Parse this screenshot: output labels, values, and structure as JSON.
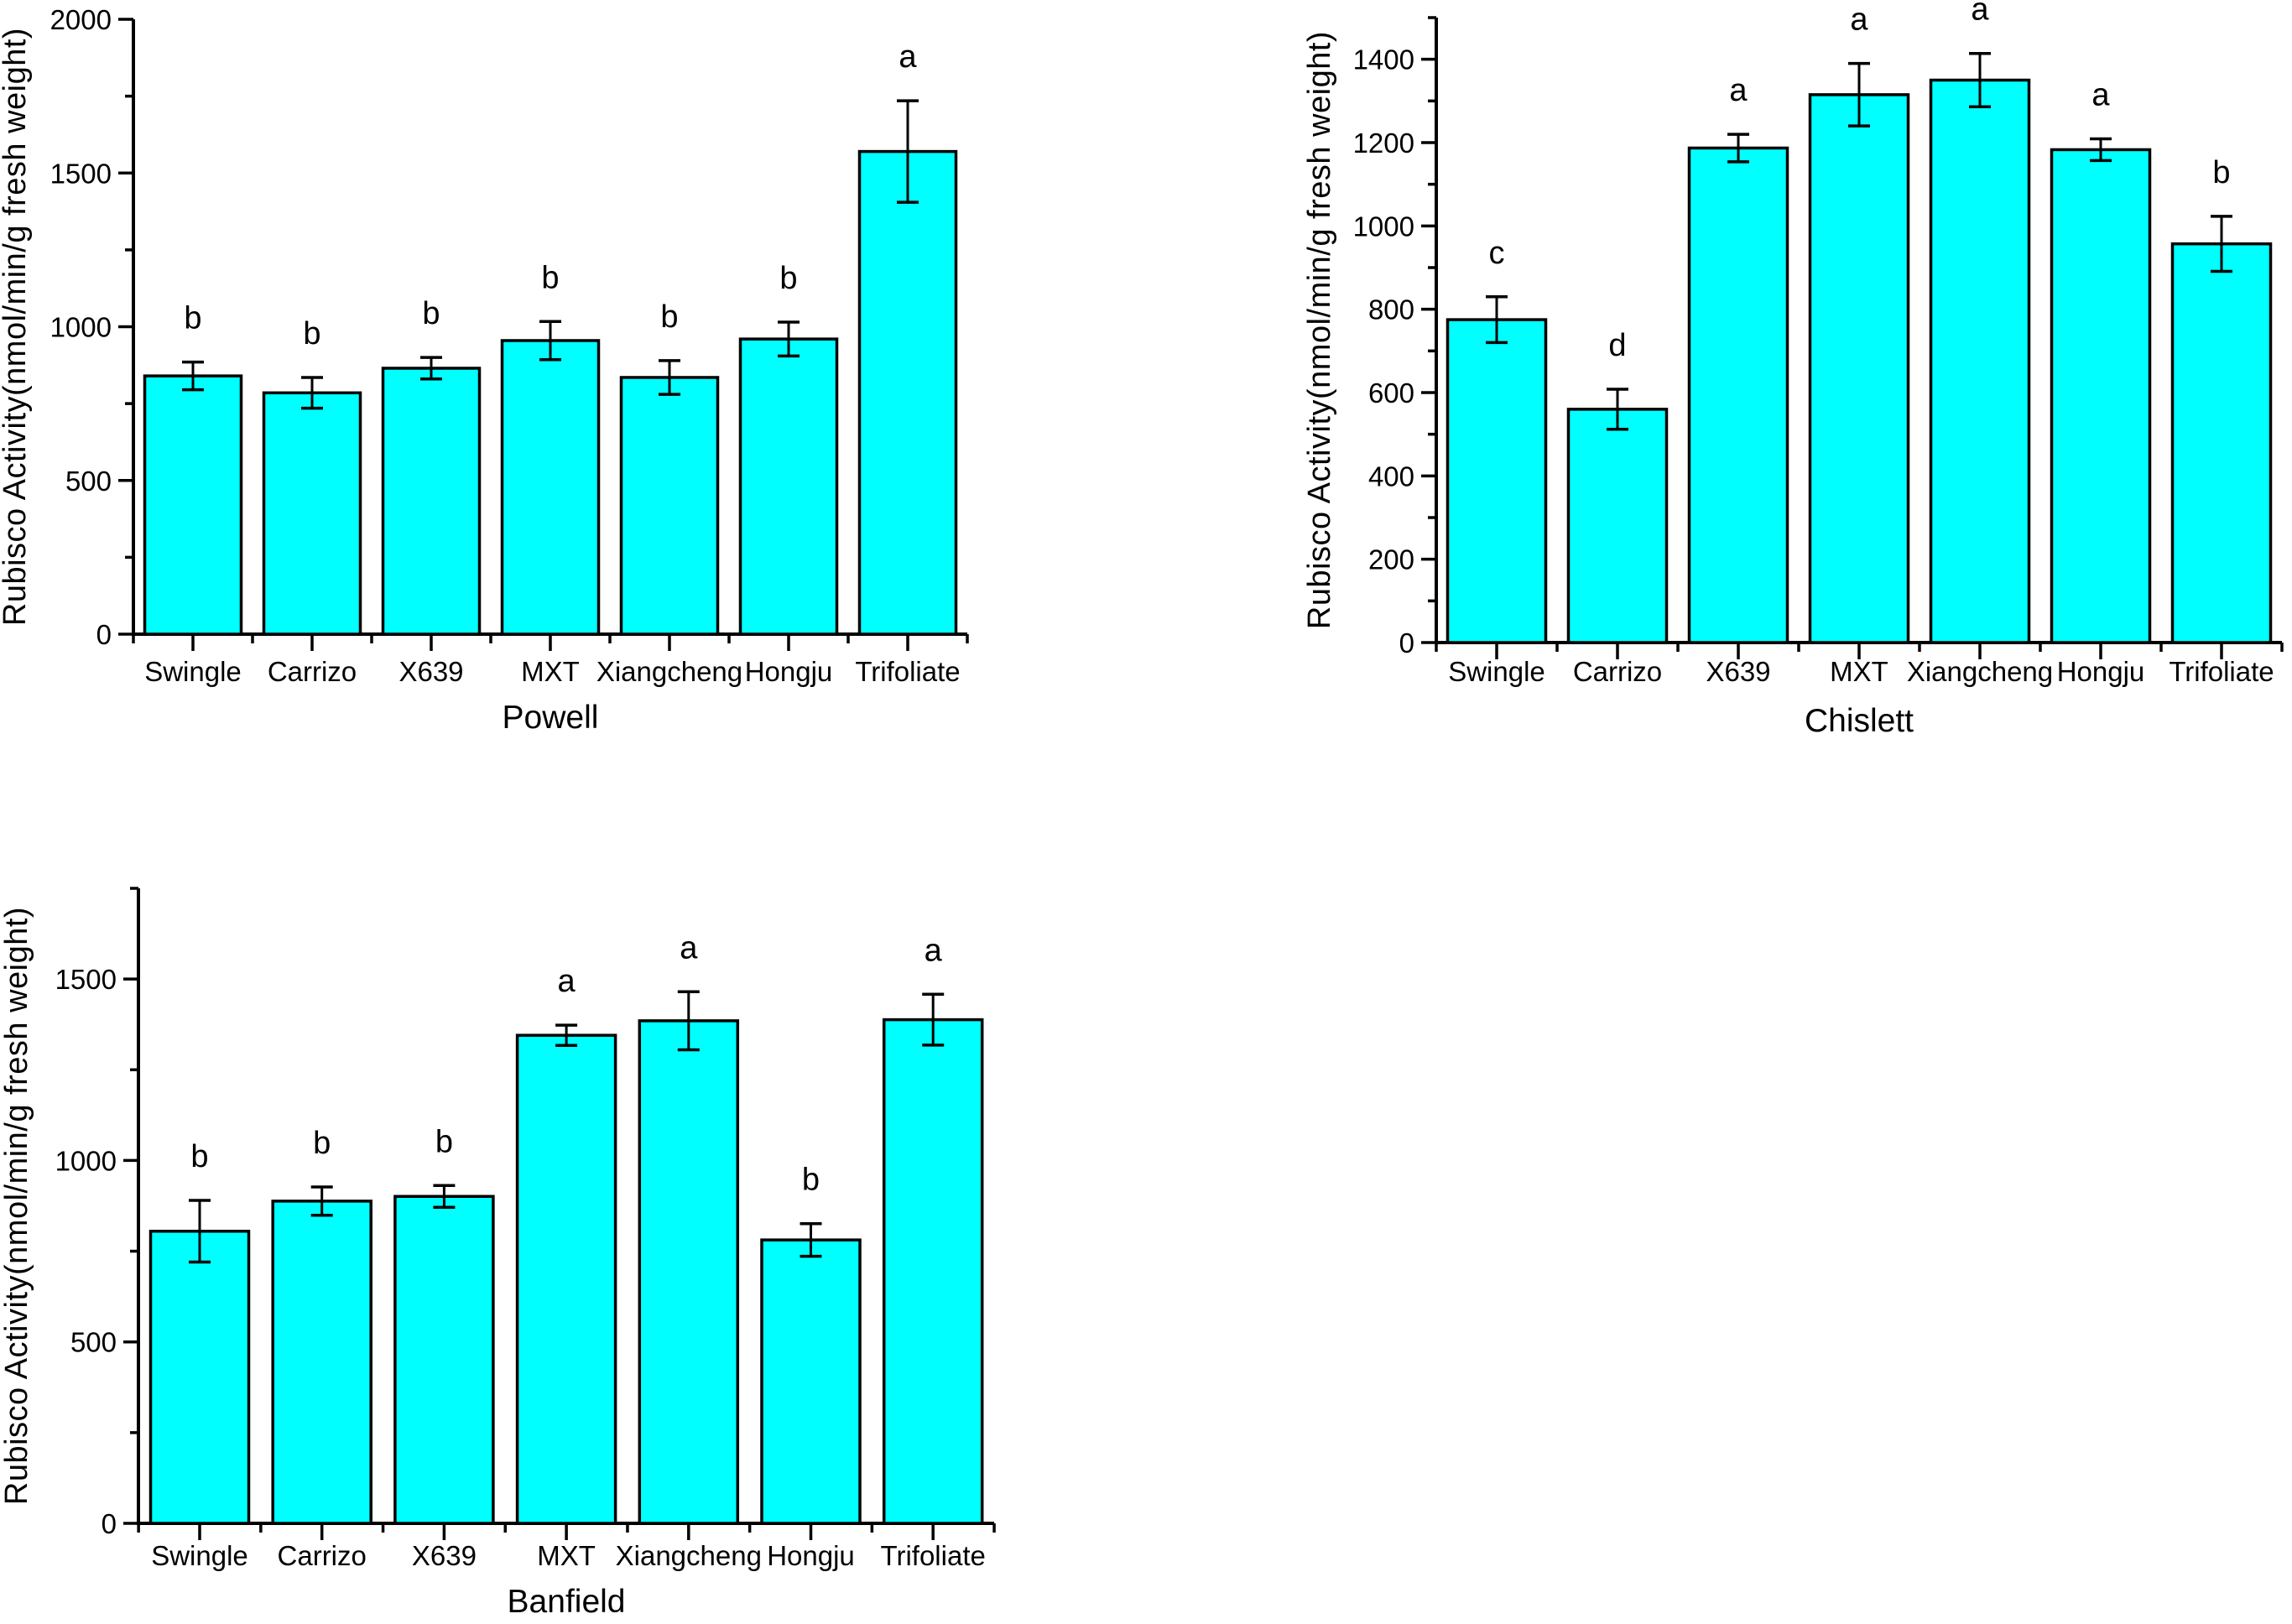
{
  "figure": {
    "background": "#FFFFFF",
    "axis_color": "#000000",
    "text_color": "#000000"
  },
  "chart_data": [
    {
      "id": "powell",
      "type": "bar",
      "title": "Powell",
      "ylabel": "Rubisco Activity(nmol/min/g fresh weight)",
      "xlabel": "",
      "categories": [
        "Swingle",
        "Carrizo",
        "X639",
        "MXT",
        "Xiangcheng",
        "Hongju",
        "Trifoliate"
      ],
      "values": [
        840,
        785,
        865,
        955,
        835,
        960,
        1570
      ],
      "errors": [
        45,
        50,
        35,
        62,
        55,
        55,
        165
      ],
      "sig_letters": [
        "b",
        "b",
        "b",
        "b",
        "b",
        "b",
        "a"
      ],
      "ylim": [
        0,
        2000
      ],
      "ytick_major": 500,
      "ytick_minor": 250,
      "ytick_labels": [
        "0",
        "500",
        "1000",
        "1500",
        "2000"
      ],
      "bar_color": "#00FFFF",
      "grid": false,
      "legend": "none"
    },
    {
      "id": "chislett",
      "type": "bar",
      "title": "Chislett",
      "ylabel": "Rubisco Activity(nmol/min/g fresh weight)",
      "xlabel": "",
      "categories": [
        "Swingle",
        "Carrizo",
        "X639",
        "MXT",
        "Xiangcheng",
        "Hongju",
        "Trifoliate"
      ],
      "values": [
        775,
        560,
        1187,
        1315,
        1350,
        1183,
        957
      ],
      "errors": [
        55,
        48,
        33,
        75,
        64,
        26,
        66
      ],
      "sig_letters": [
        "c",
        "d",
        "a",
        "a",
        "a",
        "a",
        "b"
      ],
      "ylim": [
        0,
        1500
      ],
      "ytick_major": 200,
      "ytick_minor": 100,
      "ytick_labels": [
        "0",
        "200",
        "400",
        "600",
        "800",
        "1000",
        "1200",
        "1400"
      ],
      "bar_color": "#00FFFF",
      "grid": false,
      "legend": "none"
    },
    {
      "id": "banfield",
      "type": "bar",
      "title": "Banfield",
      "ylabel": "Rubisco Activity(nmol/min/g fresh weight)",
      "xlabel": "",
      "categories": [
        "Swingle",
        "Carrizo",
        "X639",
        "MXT",
        "Xiangcheng",
        "Hongju",
        "Trifoliate"
      ],
      "values": [
        805,
        888,
        901,
        1345,
        1385,
        781,
        1388
      ],
      "errors": [
        85,
        39,
        30,
        28,
        80,
        45,
        70
      ],
      "sig_letters": [
        "b",
        "b",
        "b",
        "a",
        "a",
        "b",
        "a"
      ],
      "ylim": [
        0,
        1750
      ],
      "ytick_major": 500,
      "ytick_minor": 250,
      "ytick_labels": [
        "0",
        "500",
        "1000",
        "1500"
      ],
      "bar_color": "#00FFFF",
      "grid": false,
      "legend": "none"
    }
  ]
}
